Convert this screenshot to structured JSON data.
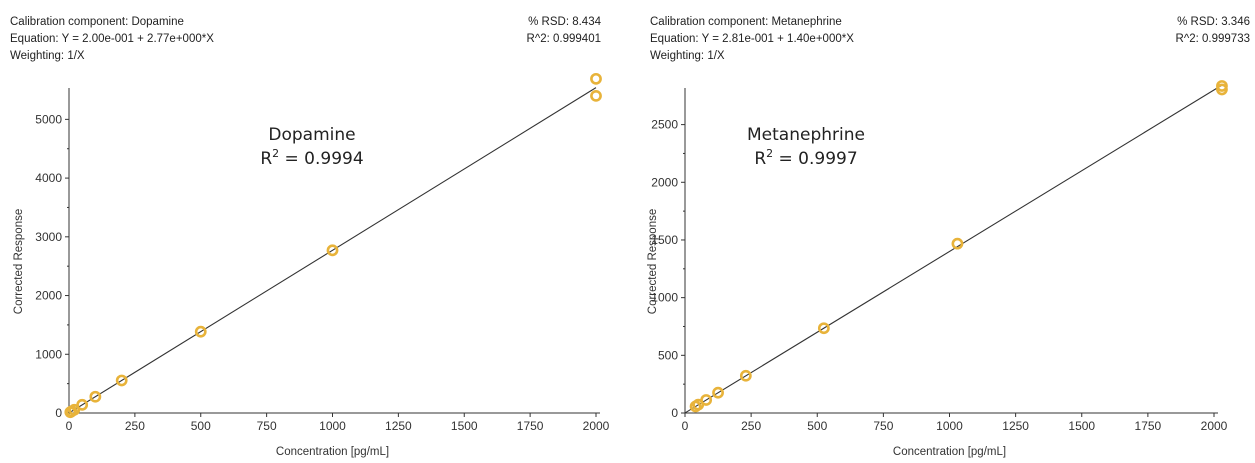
{
  "chart_data": [
    {
      "type": "scatter",
      "header": {
        "component": "Calibration component: Dopamine",
        "equation": "Equation: Y = 2.00e-001 + 2.77e+000*X",
        "weighting": "Weighting: 1/X",
        "rsd": "% RSD: 8.434",
        "r2": "R^2: 0.999401"
      },
      "annotation": {
        "name": "Dopamine",
        "r2_prefix": "R",
        "r2_sup": "2",
        "r2_value": " = 0.9994"
      },
      "xlabel": "Concentration [pg/mL]",
      "ylabel": "Corrected Response",
      "xlim": [
        0,
        2000
      ],
      "ylim": [
        0,
        5500
      ],
      "x_ticks": [
        0,
        250,
        500,
        750,
        1000,
        1250,
        1500,
        1750,
        2000
      ],
      "y_ticks": [
        0,
        1000,
        2000,
        3000,
        4000,
        5000
      ],
      "fit": {
        "intercept": 0.2,
        "slope": 2.77
      },
      "points": [
        {
          "x": 5,
          "y": 14
        },
        {
          "x": 10,
          "y": 28
        },
        {
          "x": 20,
          "y": 55
        },
        {
          "x": 50,
          "y": 139
        },
        {
          "x": 100,
          "y": 277
        },
        {
          "x": 200,
          "y": 554
        },
        {
          "x": 500,
          "y": 1385
        },
        {
          "x": 1000,
          "y": 2770
        },
        {
          "x": 2000,
          "y": 5400
        },
        {
          "x": 2000,
          "y": 5690
        }
      ],
      "colors": {
        "marker": "#e8b33a",
        "line": "#333333"
      }
    },
    {
      "type": "scatter",
      "header": {
        "component": "Calibration component: Metanephrine",
        "equation": "Equation: Y = 2.81e-001 + 1.40e+000*X",
        "weighting": "Weighting: 1/X",
        "rsd": "% RSD: 3.346",
        "r2": "R^2: 0.999733"
      },
      "annotation": {
        "name": "Metanephrine",
        "r2_prefix": "R",
        "r2_sup": "2",
        "r2_value": " = 0.9997"
      },
      "xlabel": "Concentration [pg/mL]",
      "ylabel": "Corrected Response",
      "xlim": [
        0,
        2000
      ],
      "ylim": [
        0,
        2800
      ],
      "x_ticks": [
        0,
        250,
        500,
        750,
        1000,
        1250,
        1500,
        1750,
        2000
      ],
      "y_ticks": [
        0,
        500,
        1000,
        1500,
        2000,
        2500
      ],
      "fit": {
        "intercept": 0.281,
        "slope": 1.4
      },
      "points": [
        {
          "x": 40,
          "y": 57
        },
        {
          "x": 50,
          "y": 72
        },
        {
          "x": 80,
          "y": 113
        },
        {
          "x": 125,
          "y": 176
        },
        {
          "x": 230,
          "y": 323
        },
        {
          "x": 525,
          "y": 735
        },
        {
          "x": 1030,
          "y": 1468
        },
        {
          "x": 2030,
          "y": 2805
        },
        {
          "x": 2030,
          "y": 2835
        }
      ],
      "colors": {
        "marker": "#e8b33a",
        "line": "#333333"
      }
    }
  ]
}
